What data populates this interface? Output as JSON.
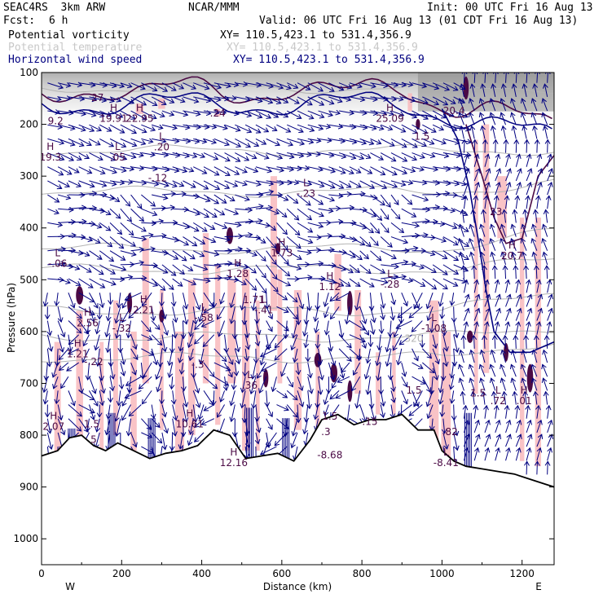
{
  "header": {
    "model": "SEAC4RS  3km ARW",
    "org": "NCAR/MMM",
    "init": "Init: 00 UTC Fri 16 Aug 13",
    "fcst_label": "Fcst:",
    "fcst_value": "6 h",
    "valid": "Valid: 06 UTC Fri 16 Aug 13 (01 CDT Fri 16 Aug 13)"
  },
  "legend": [
    {
      "name": "Potential vorticity",
      "xy": "XY= 110.5,423.1 to 531.4,356.9",
      "color": "#000000"
    },
    {
      "name": "Potential temperature",
      "xy": "XY= 110.5,423.1 to 531.4,356.9",
      "color": "#c8c8c8"
    },
    {
      "name": "Horizontal wind speed",
      "xy": "XY= 110.5,423.1 to 531.4,356.9",
      "color": "#000080"
    }
  ],
  "chart_data": {
    "type": "cross-section",
    "xlabel": "Distance (km)",
    "ylabel": "Pressure (hPa)",
    "xlim": [
      0,
      1280
    ],
    "ylim": [
      1050,
      100
    ],
    "x_ticks": [
      0,
      200,
      400,
      600,
      800,
      1000,
      1200
    ],
    "y_ticks": [
      100,
      200,
      300,
      400,
      500,
      600,
      700,
      800,
      900,
      1000
    ],
    "x_end_labels": {
      "left": "W",
      "right": "E"
    },
    "terrain_pressure": [
      [
        0,
        840
      ],
      [
        40,
        830
      ],
      [
        70,
        805
      ],
      [
        100,
        800
      ],
      [
        130,
        820
      ],
      [
        160,
        830
      ],
      [
        190,
        815
      ],
      [
        230,
        830
      ],
      [
        270,
        845
      ],
      [
        310,
        835
      ],
      [
        350,
        830
      ],
      [
        390,
        820
      ],
      [
        430,
        790
      ],
      [
        470,
        800
      ],
      [
        510,
        845
      ],
      [
        550,
        840
      ],
      [
        590,
        835
      ],
      [
        630,
        850
      ],
      [
        670,
        810
      ],
      [
        700,
        770
      ],
      [
        740,
        760
      ],
      [
        780,
        780
      ],
      [
        820,
        770
      ],
      [
        860,
        770
      ],
      [
        900,
        760
      ],
      [
        940,
        790
      ],
      [
        980,
        790
      ],
      [
        1000,
        830
      ],
      [
        1030,
        850
      ],
      [
        1060,
        860
      ],
      [
        1100,
        865
      ],
      [
        1140,
        870
      ],
      [
        1180,
        875
      ],
      [
        1220,
        885
      ],
      [
        1260,
        895
      ],
      [
        1280,
        900
      ]
    ],
    "theta_labels": [
      {
        "x": 930,
        "p": 620,
        "text": "320"
      }
    ],
    "pv_labels": [
      {
        "x": 22,
        "p": 270,
        "type": "H",
        "value": "19.3"
      },
      {
        "x": 35,
        "p": 200,
        "type": "",
        "value": "9.2"
      },
      {
        "x": 180,
        "p": 195,
        "type": "H",
        "value": "19.91"
      },
      {
        "x": 140,
        "p": 155,
        "type": "",
        "value": "27"
      },
      {
        "x": 245,
        "p": 195,
        "type": "H",
        "value": "22.95"
      },
      {
        "x": 440,
        "p": 185,
        "type": "",
        "value": ".24"
      },
      {
        "x": 870,
        "p": 195,
        "type": "H",
        "value": "25.09"
      },
      {
        "x": 950,
        "p": 230,
        "type": "",
        "value": "1.5"
      },
      {
        "x": 1030,
        "p": 180,
        "type": "",
        "value": "20.4"
      },
      {
        "x": 1135,
        "p": 375,
        "type": "",
        "value": "23"
      },
      {
        "x": 1175,
        "p": 460,
        "type": "H",
        "value": "20.7"
      },
      {
        "x": 190,
        "p": 270,
        "type": "L",
        "value": ".05"
      },
      {
        "x": 300,
        "p": 250,
        "type": "L",
        "value": ".20"
      },
      {
        "x": 290,
        "p": 310,
        "type": "",
        "value": "-.12"
      },
      {
        "x": 660,
        "p": 340,
        "type": "L",
        "value": "-.23"
      },
      {
        "x": 600,
        "p": 455,
        "type": "H",
        "value": "1.73"
      },
      {
        "x": 40,
        "p": 475,
        "type": "L",
        "value": "-.06"
      },
      {
        "x": 490,
        "p": 495,
        "type": "H",
        "value": "1.28"
      },
      {
        "x": 720,
        "p": 520,
        "type": "H",
        "value": "1.12"
      },
      {
        "x": 870,
        "p": 515,
        "type": "L",
        "value": "-.28"
      },
      {
        "x": 530,
        "p": 545,
        "type": "",
        "value": "1.71"
      },
      {
        "x": 555,
        "p": 565,
        "type": "L",
        "value": "-.41"
      },
      {
        "x": 115,
        "p": 590,
        "type": "H",
        "value": "2.56"
      },
      {
        "x": 200,
        "p": 600,
        "type": "L",
        "value": "-.32"
      },
      {
        "x": 255,
        "p": 565,
        "type": "H",
        "value": "2.21"
      },
      {
        "x": 405,
        "p": 580,
        "type": "L",
        "value": "-.58"
      },
      {
        "x": 980,
        "p": 600,
        "type": "L",
        "value": "-1.08"
      },
      {
        "x": 90,
        "p": 650,
        "type": "H",
        "value": "1.21"
      },
      {
        "x": 130,
        "p": 665,
        "type": "",
        "value": "-.22"
      },
      {
        "x": 390,
        "p": 670,
        "type": "",
        "value": "-.3"
      },
      {
        "x": 520,
        "p": 710,
        "type": "L",
        "value": ".36"
      },
      {
        "x": 930,
        "p": 720,
        "type": "",
        "value": "1.5"
      },
      {
        "x": 1090,
        "p": 725,
        "type": "",
        "value": "1.5"
      },
      {
        "x": 1140,
        "p": 740,
        "type": "L",
        "value": ".72"
      },
      {
        "x": 1205,
        "p": 740,
        "type": "H",
        "value": ".01"
      },
      {
        "x": 30,
        "p": 790,
        "type": "H",
        "value": "2.07"
      },
      {
        "x": 125,
        "p": 785,
        "type": "",
        "value": "1.5"
      },
      {
        "x": 370,
        "p": 785,
        "type": "H",
        "value": "10.61"
      },
      {
        "x": 720,
        "p": 770,
        "type": "",
        "value": "1.5"
      },
      {
        "x": 820,
        "p": 780,
        "type": "",
        "value": ".15"
      },
      {
        "x": 1020,
        "p": 800,
        "type": "",
        "value": ".82"
      },
      {
        "x": 710,
        "p": 800,
        "type": "",
        "value": ".3"
      },
      {
        "x": 130,
        "p": 815,
        "type": "",
        "value": "5"
      },
      {
        "x": 480,
        "p": 860,
        "type": "H",
        "value": "12.16"
      },
      {
        "x": 720,
        "p": 845,
        "type": "",
        "value": "-8.68"
      },
      {
        "x": 1010,
        "p": 860,
        "type": "L",
        "value": "-8.41"
      }
    ]
  }
}
